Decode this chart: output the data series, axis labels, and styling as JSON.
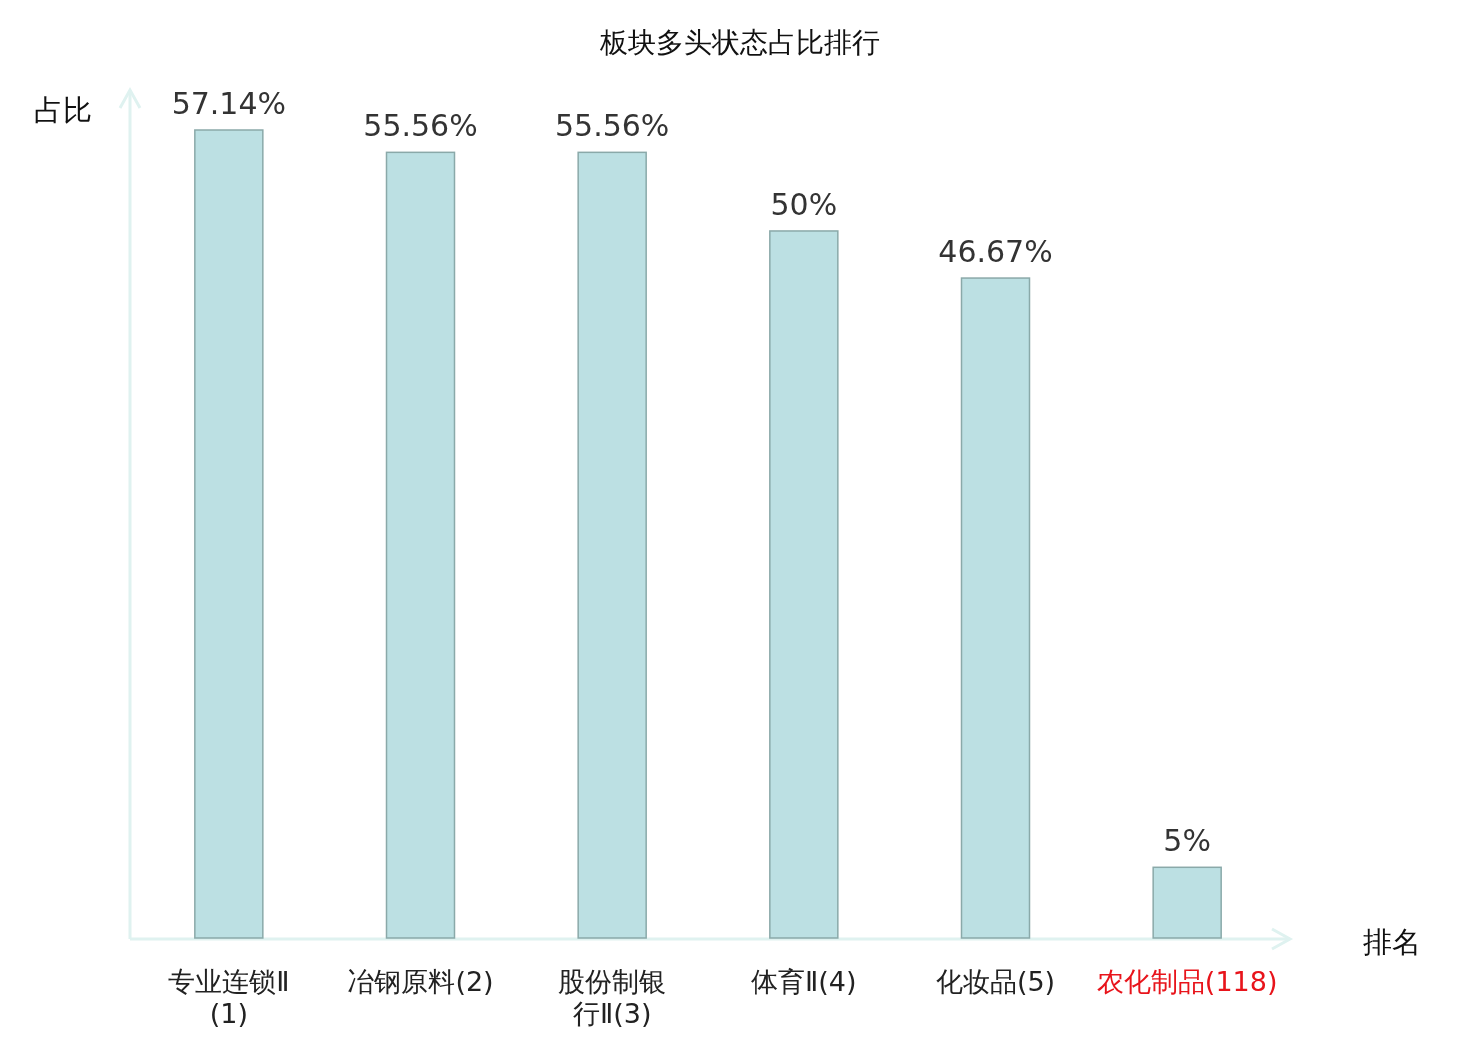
{
  "chart_data": {
    "type": "bar",
    "title": "板块多头状态占比排行",
    "xlabel": "排名",
    "ylabel": "占比",
    "categories": [
      "专业连锁Ⅱ(1)",
      "冶钢原料(2)",
      "股份制银行Ⅱ(3)",
      "体育Ⅱ(4)",
      "化妆品(5)",
      "农化制品(118)"
    ],
    "values": [
      57.14,
      55.56,
      55.56,
      50,
      46.67,
      5
    ],
    "value_labels": [
      "57.14%",
      "55.56%",
      "55.56%",
      "50%",
      "46.67%",
      "5%"
    ],
    "color": "#bce0e3"
  }
}
